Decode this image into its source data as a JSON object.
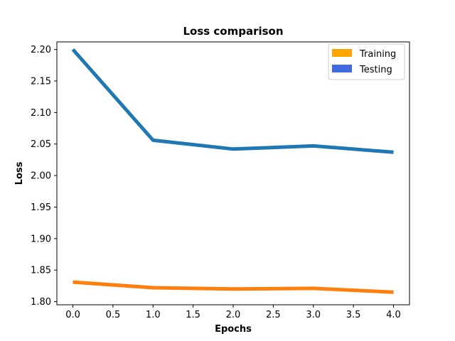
{
  "chart_data": {
    "type": "line",
    "title": "Loss comparison",
    "xlabel": "Epochs",
    "ylabel": "Loss",
    "x": [
      0,
      1,
      2,
      3,
      4
    ],
    "xlim": [
      -0.2,
      4.2
    ],
    "ylim": [
      1.795,
      2.212
    ],
    "xticks": [
      "0.0",
      "0.5",
      "1.0",
      "1.5",
      "2.0",
      "2.5",
      "3.0",
      "3.5",
      "4.0"
    ],
    "xtick_values": [
      0.0,
      0.5,
      1.0,
      1.5,
      2.0,
      2.5,
      3.0,
      3.5,
      4.0
    ],
    "yticks": [
      "1.80",
      "1.85",
      "1.90",
      "1.95",
      "2.00",
      "2.05",
      "2.10",
      "2.15",
      "2.20"
    ],
    "ytick_values": [
      1.8,
      1.85,
      1.9,
      1.95,
      2.0,
      2.05,
      2.1,
      2.15,
      2.2
    ],
    "grid": false,
    "legend_position": "top-right",
    "legend": [
      {
        "label": "Training",
        "color": "#ffa500"
      },
      {
        "label": "Testing",
        "color": "#4169e1"
      }
    ],
    "series": [
      {
        "color": "#1f77b4",
        "values": [
          2.2,
          2.056,
          2.042,
          2.047,
          2.037
        ]
      },
      {
        "color": "#ff7f0e",
        "values": [
          1.831,
          1.822,
          1.82,
          1.821,
          1.815
        ]
      }
    ]
  }
}
